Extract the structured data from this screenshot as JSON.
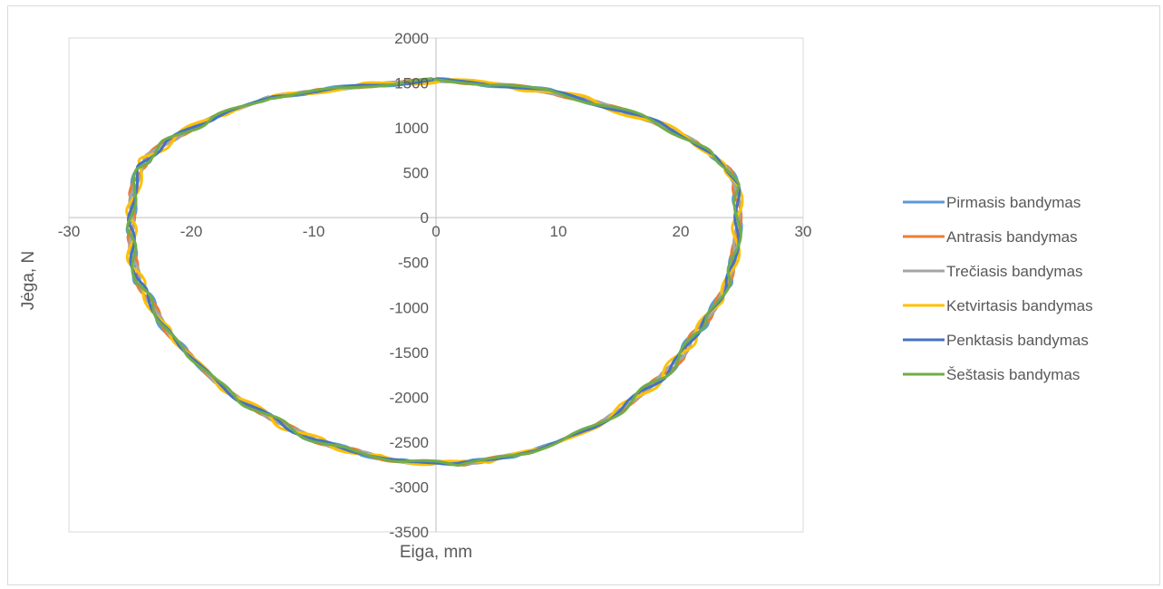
{
  "chart_data": {
    "type": "line",
    "title": "",
    "xlabel": "Eiga, mm",
    "ylabel": "Jėga, N",
    "xlim": [
      -30,
      30
    ],
    "ylim": [
      -3500,
      2000
    ],
    "x_ticks": [
      "-30",
      "-20",
      "-10",
      "0",
      "10",
      "20",
      "30"
    ],
    "y_ticks": [
      "2000",
      "1500",
      "1000",
      "500",
      "0",
      "-500",
      "-1000",
      "-1500",
      "-2000",
      "-2500",
      "-3000",
      "-3500"
    ],
    "grid": false,
    "legend_position": "right",
    "base_loop": [
      [
        0,
        1530
      ],
      [
        3,
        1505
      ],
      [
        6,
        1465
      ],
      [
        9,
        1410
      ],
      [
        12,
        1320
      ],
      [
        15,
        1200
      ],
      [
        18,
        1060
      ],
      [
        21,
        860
      ],
      [
        22.5,
        700
      ],
      [
        23.8,
        550
      ],
      [
        24.5,
        380
      ],
      [
        24.7,
        100
      ],
      [
        24.6,
        -200
      ],
      [
        24.3,
        -500
      ],
      [
        23.8,
        -750
      ],
      [
        23,
        -950
      ],
      [
        22,
        -1150
      ],
      [
        21,
        -1330
      ],
      [
        20,
        -1550
      ],
      [
        18.5,
        -1770
      ],
      [
        17,
        -1930
      ],
      [
        15,
        -2150
      ],
      [
        13,
        -2320
      ],
      [
        10,
        -2500
      ],
      [
        8,
        -2600
      ],
      [
        6,
        -2650
      ],
      [
        4,
        -2710
      ],
      [
        2,
        -2740
      ],
      [
        0,
        -2720
      ],
      [
        -2,
        -2730
      ],
      [
        -4,
        -2690
      ],
      [
        -6,
        -2620
      ],
      [
        -8,
        -2560
      ],
      [
        -10,
        -2470
      ],
      [
        -12,
        -2340
      ],
      [
        -14,
        -2190
      ],
      [
        -16,
        -2030
      ],
      [
        -18,
        -1830
      ],
      [
        -20,
        -1550
      ],
      [
        -21.5,
        -1340
      ],
      [
        -22.5,
        -1150
      ],
      [
        -23.5,
        -900
      ],
      [
        -24.3,
        -700
      ],
      [
        -24.8,
        -450
      ],
      [
        -24.9,
        -200
      ],
      [
        -24.9,
        0
      ],
      [
        -24.8,
        250
      ],
      [
        -24.2,
        550
      ],
      [
        -23.5,
        680
      ],
      [
        -22,
        840
      ],
      [
        -20,
        990
      ],
      [
        -18,
        1130
      ],
      [
        -16,
        1220
      ],
      [
        -13.5,
        1340
      ],
      [
        -11,
        1390
      ],
      [
        -9,
        1420
      ],
      [
        -6,
        1470
      ],
      [
        -3,
        1500
      ],
      [
        0,
        1530
      ]
    ],
    "series": [
      {
        "name": "Pirmasis bandymas",
        "color": "#5B9BD5",
        "phase": 0.0,
        "amp": 1.0
      },
      {
        "name": "Antrasis bandymas",
        "color": "#ED7D31",
        "phase": 1.1,
        "amp": 0.8
      },
      {
        "name": "Trečiasis bandymas",
        "color": "#A5A5A5",
        "phase": 2.3,
        "amp": 0.6
      },
      {
        "name": "Ketvirtasis bandymas",
        "color": "#FFC000",
        "phase": 3.4,
        "amp": 1.2
      },
      {
        "name": "Penktasis bandymas",
        "color": "#4472C4",
        "phase": 4.5,
        "amp": 0.7
      },
      {
        "name": "Šeštasis bandymas",
        "color": "#70AD47",
        "phase": 5.6,
        "amp": 0.9
      }
    ]
  }
}
